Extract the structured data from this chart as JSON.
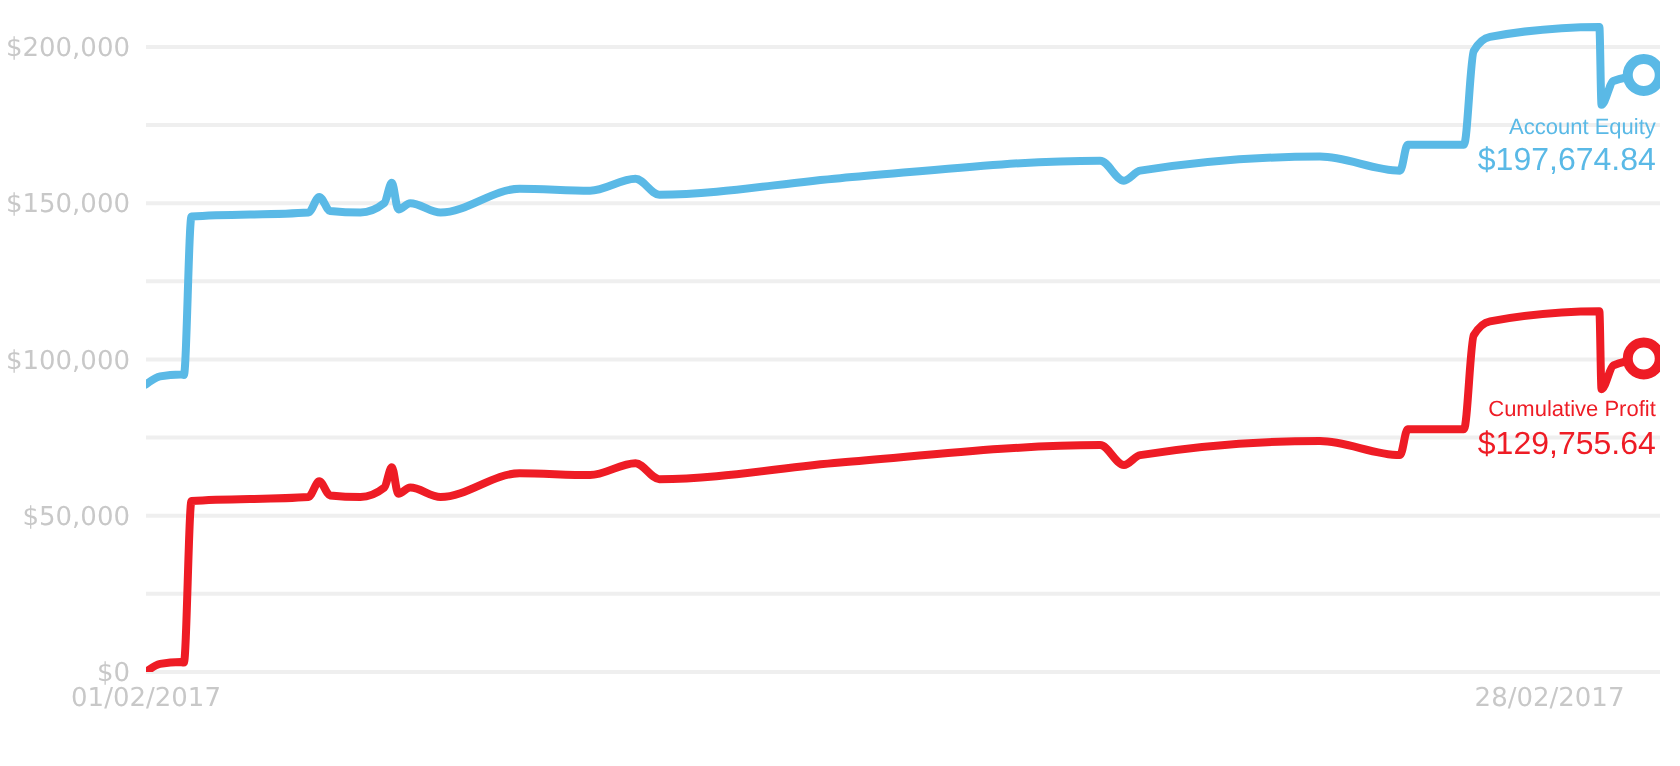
{
  "chart_data": {
    "type": "line",
    "x": [
      "2017-02-01T00:00",
      "2017-02-01T06:30",
      "2017-02-01T16:00",
      "2017-02-01T17:30",
      "2017-02-01T21:00",
      "2017-02-04T03:00",
      "2017-02-04T08:00",
      "2017-02-04T13:00",
      "2017-02-05T03:00",
      "2017-02-05T14:00",
      "2017-02-05T17:30",
      "2017-02-05T20:30",
      "2017-02-06T02:00",
      "2017-02-06T16:00",
      "2017-02-08T04:30",
      "2017-02-09T13:00",
      "2017-02-10T10:00",
      "2017-02-10T21:00",
      "2017-02-14T08:30",
      "2017-02-19T08:30",
      "2017-02-19T19:30",
      "2017-02-20T03:00",
      "2017-02-23T14:00",
      "2017-02-25T03:00",
      "2017-02-25T06:30",
      "2017-02-26T08:30",
      "2017-02-26T13:00",
      "2017-02-26T20:30",
      "2017-02-28T23:00",
      "2017-03-01T00:00",
      "2017-03-01T05:30",
      "2017-03-01T19:30"
    ],
    "series": [
      {
        "name": "Account Equity",
        "color": "#5ab9e6",
        "values": [
          92000,
          94600,
          95200,
          95000,
          145700,
          147000,
          152000,
          147500,
          147000,
          150000,
          156500,
          148000,
          150000,
          147000,
          154600,
          154000,
          157800,
          152700,
          158000,
          163600,
          157200,
          160400,
          164900,
          160400,
          168700,
          168700,
          198700,
          203200,
          206400,
          181500,
          189100,
          191000
        ]
      },
      {
        "name": "Cumulative Profit",
        "color": "#ee1c25",
        "values": [
          0,
          2600,
          3200,
          3000,
          54700,
          56000,
          61000,
          56500,
          56000,
          59000,
          65500,
          57000,
          59000,
          56000,
          63600,
          63000,
          66800,
          61700,
          67000,
          72600,
          66200,
          69400,
          73900,
          69400,
          77700,
          77700,
          107700,
          112200,
          115400,
          90500,
          98100,
          100300
        ]
      }
    ],
    "annotations": [
      "$197,674.84",
      "$129,755.64"
    ],
    "xlim": [
      "2017-02-01T00:00",
      "2017-03-02T03:00"
    ],
    "xticks": [
      {
        "value": "2017-02-01T00:00",
        "label": "01/02/2017"
      },
      {
        "value": "2017-02-28T00:00",
        "label": "28/02/2017"
      }
    ],
    "ylim": [
      0,
      215000
    ],
    "yticks": [
      {
        "value": 0,
        "label": "$0"
      },
      {
        "value": 25000,
        "label": null
      },
      {
        "value": 50000,
        "label": "$50,000"
      },
      {
        "value": 75000,
        "label": null
      },
      {
        "value": 100000,
        "label": "$100,000"
      },
      {
        "value": 125000,
        "label": null
      },
      {
        "value": 150000,
        "label": "$150,000"
      },
      {
        "value": 175000,
        "label": null
      },
      {
        "value": 200000,
        "label": "$200,000"
      }
    ],
    "grid": "y",
    "legend": false,
    "line_style": "solid"
  }
}
